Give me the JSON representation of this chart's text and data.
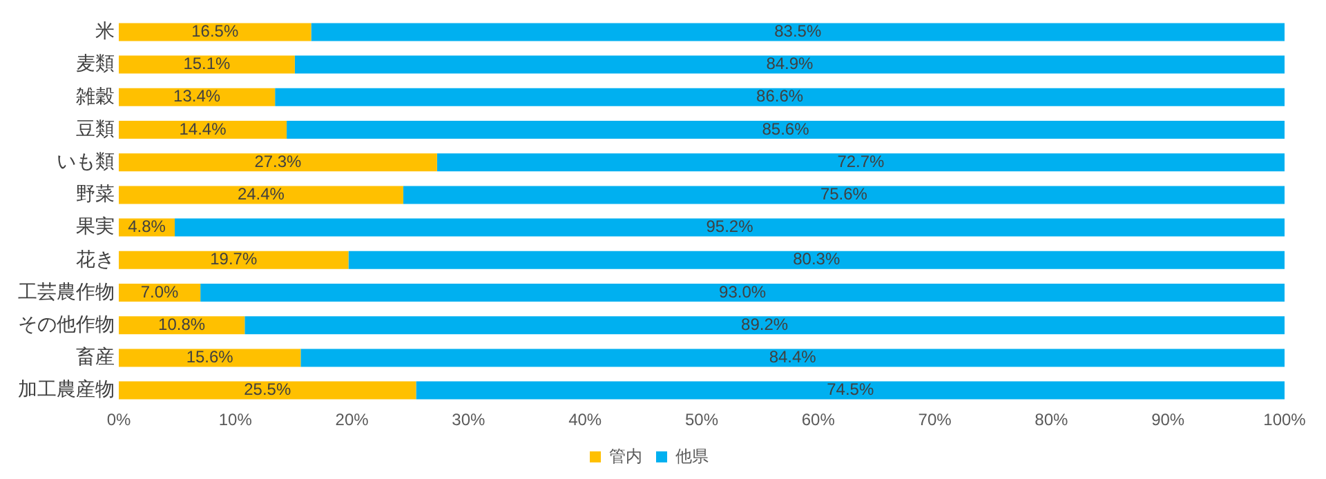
{
  "chart_data": {
    "type": "bar",
    "orientation": "horizontal",
    "stacked": true,
    "categories": [
      "米",
      "麦類",
      "雑穀",
      "豆類",
      "いも類",
      "野菜",
      "果実",
      "花き",
      "工芸農作物",
      "その他作物",
      "畜産",
      "加工農産物"
    ],
    "series": [
      {
        "name": "管内",
        "color": "#ffc000",
        "values": [
          16.5,
          15.1,
          13.4,
          14.4,
          27.3,
          24.4,
          4.8,
          19.7,
          7.0,
          10.8,
          15.6,
          25.5
        ],
        "value_labels": [
          "16.5%",
          "15.1%",
          "13.4%",
          "14.4%",
          "27.3%",
          "24.4%",
          "4.8%",
          "19.7%",
          "7.0%",
          "10.8%",
          "15.6%",
          "25.5%"
        ]
      },
      {
        "name": "他県",
        "color": "#00b0f0",
        "values": [
          83.5,
          84.9,
          86.6,
          85.6,
          72.7,
          75.6,
          95.2,
          80.3,
          93.0,
          89.2,
          84.4,
          74.5
        ],
        "value_labels": [
          "83.5%",
          "84.9%",
          "86.6%",
          "85.6%",
          "72.7%",
          "75.6%",
          "95.2%",
          "80.3%",
          "93.0%",
          "89.2%",
          "84.4%",
          "74.5%"
        ]
      }
    ],
    "xlim": [
      0,
      100
    ],
    "xticks": [
      {
        "value": 0,
        "label": "0%"
      },
      {
        "value": 10,
        "label": "10%"
      },
      {
        "value": 20,
        "label": "20%"
      },
      {
        "value": 30,
        "label": "30%"
      },
      {
        "value": 40,
        "label": "40%"
      },
      {
        "value": 50,
        "label": "50%"
      },
      {
        "value": 60,
        "label": "60%"
      },
      {
        "value": 70,
        "label": "70%"
      },
      {
        "value": 80,
        "label": "80%"
      },
      {
        "value": 90,
        "label": "90%"
      },
      {
        "value": 100,
        "label": "100%"
      }
    ],
    "grid": false,
    "legend": "bottom"
  }
}
